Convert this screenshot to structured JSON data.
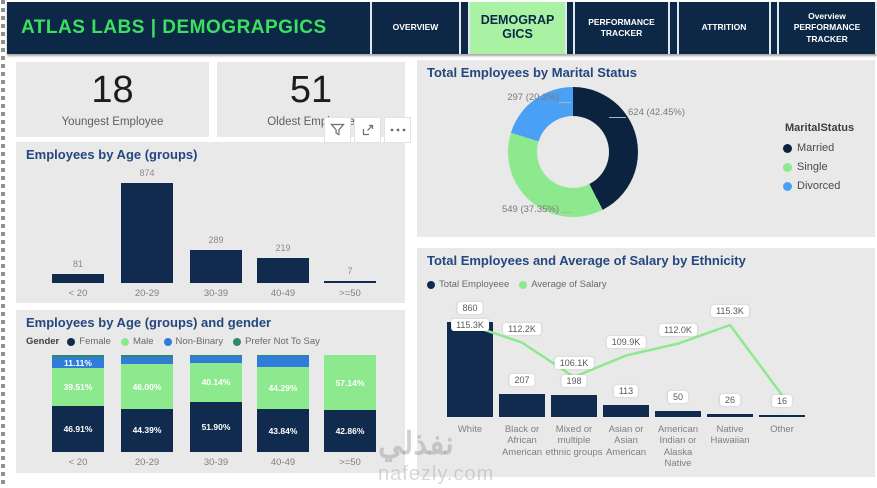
{
  "app": {
    "header": {
      "title": "ATLAS LABS | DEMOGRAPGICS",
      "tabs": [
        {
          "label": "OVERVIEW",
          "active": false
        },
        {
          "label": "DEMOGRAPGICS",
          "active": true
        },
        {
          "label": "PERFORMANCE TRACKER",
          "active": false
        },
        {
          "label": "ATTRITION",
          "active": false
        },
        {
          "label": "Overview PERFORMANCE TRACKER",
          "active": false
        }
      ]
    },
    "kpi_cards": [
      {
        "value": "18",
        "label": "Youngest Employee"
      },
      {
        "value": "51",
        "label": "Oldest Employee"
      }
    ],
    "visual_toolbar": {
      "icons": [
        "filter-icon",
        "focus-mode-icon",
        "more-options-icon"
      ]
    },
    "watermark": {
      "arabic": "نفذلي",
      "latin": "nafezly.com"
    },
    "colors": {
      "header_bg": "#0d2847",
      "header_title_green": "#3ce060",
      "active_tab_green": "#a9f2a4",
      "panel_bg": "#e9e9e9",
      "navy": "#112b4e",
      "green": "#8de98d",
      "blue": "#4aa0f5",
      "nonbinary_blue": "#2f7cd9",
      "teal": "#2e8b6a",
      "title_blue": "#24477f"
    }
  },
  "chart_data": [
    {
      "id": "employees-by-age",
      "type": "bar",
      "title": "Employees by Age (groups)",
      "categories": [
        "< 20",
        "20-29",
        "30-39",
        "40-49",
        ">=50"
      ],
      "values": [
        81,
        874,
        289,
        219,
        7
      ],
      "ylim": [
        0,
        874
      ],
      "grid": false,
      "legend_position": "none",
      "bar_color": "#112b4e"
    },
    {
      "id": "employees-by-age-and-gender",
      "type": "bar-stacked-100",
      "title": "Employees by Age (groups) and gender",
      "legend_title": "Gender",
      "legend_position": "top",
      "categories": [
        "< 20",
        "20-29",
        "30-39",
        "40-49",
        ">=50"
      ],
      "series": [
        {
          "name": "Female",
          "color": "#112b4e",
          "values": [
            46.91,
            44.39,
            51.9,
            43.84,
            42.86
          ],
          "labels": [
            "46.91%",
            "44.39%",
            "51.90%",
            "43.84%",
            "42.86%"
          ]
        },
        {
          "name": "Male",
          "color": "#8de98d",
          "values": [
            39.51,
            46.0,
            40.14,
            44.29,
            57.14
          ],
          "labels": [
            "39.51%",
            "46.00%",
            "40.14%",
            "44.29%",
            "57.14%"
          ]
        },
        {
          "name": "Non-Binary",
          "color": "#2f7cd9",
          "values": [
            11.11,
            7.6,
            6.5,
            10.4,
            0
          ],
          "labels": [
            "11.11%",
            "",
            "",
            "",
            ""
          ]
        },
        {
          "name": "Prefer Not To Say",
          "color": "#2e8b6a",
          "values": [
            2.47,
            2.0,
            1.5,
            1.5,
            0
          ],
          "labels": [
            "",
            "",
            "",
            "",
            ""
          ]
        }
      ],
      "note": "Only percentages shown on screen are in labels; unlabeled segment values estimated from pixel heights."
    },
    {
      "id": "total-employees-by-marital-status",
      "type": "pie",
      "title": "Total Employees by Marital Status",
      "legend_title": "MaritalStatus",
      "legend_position": "right",
      "slices": [
        {
          "name": "Married",
          "value": 624,
          "pct": 42.45,
          "label": "624 (42.45%)",
          "color": "#0c2340"
        },
        {
          "name": "Single",
          "value": 549,
          "pct": 37.35,
          "label": "549 (37.35%)",
          "color": "#8de98d"
        },
        {
          "name": "Divorced",
          "value": 297,
          "pct": 20.2,
          "label": "297 (20.2%)",
          "color": "#4aa0f5"
        }
      ]
    },
    {
      "id": "total-employees-and-average-salary-by-ethnicity",
      "type": "bar+line",
      "title": "Total Employees and Average of Salary by Ethnicity",
      "legend_position": "top",
      "categories": [
        "White",
        "Black or African American",
        "Mixed or multiple ethnic groups",
        "Asian or Asian American",
        "American Indian or Alaska Native",
        "Native Hawaiian",
        "Other"
      ],
      "series": [
        {
          "name": "Total Employeee",
          "type": "bar",
          "color": "#112b4e",
          "values": [
            860,
            207,
            198,
            113,
            50,
            26,
            16
          ]
        },
        {
          "name": "Average of Salary",
          "type": "line",
          "color": "#8de98d",
          "values_k": [
            115.3,
            112.2,
            106.1,
            109.9,
            112.0,
            115.3,
            102.9
          ],
          "labels": [
            "115.3K",
            "112.2K",
            "106.1K",
            "109.9K",
            "112.0K",
            "115.3K",
            ""
          ],
          "note": "Last point has no visible label; 102.9K estimated from line position."
        }
      ]
    }
  ]
}
